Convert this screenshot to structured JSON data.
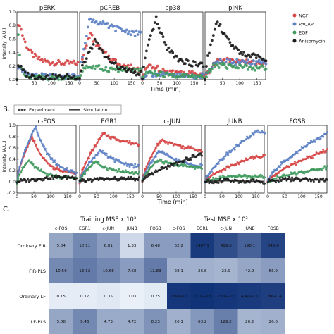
{
  "panels": {
    "a": "",
    "b": "B.",
    "c": "C."
  },
  "legend_treatments": [
    {
      "label": "NGF",
      "color": "#d64545"
    },
    {
      "label": "PACAP",
      "color": "#5b7fc4"
    },
    {
      "label": "EGF",
      "color": "#3f9a5e"
    },
    {
      "label": "Anisomycin",
      "color": "#1a1a1a"
    }
  ],
  "legend_b": {
    "experiment": "Experiment",
    "simulation": "Simulation"
  },
  "axis": {
    "ylabel": "Intensity (A.U.)",
    "xlabel": "Time (min)",
    "xticks": [
      "0",
      "50",
      "100",
      "150"
    ],
    "yticks_a": [
      "0.0",
      "0.2",
      "0.4",
      "0.6",
      "0.8",
      "1.0"
    ],
    "yticks_b": [
      "-0.2",
      "0.0",
      "0.2",
      "0.4",
      "0.6",
      "0.8",
      "1.0"
    ]
  },
  "chart_data": [
    {
      "type": "scatter",
      "panel": "A",
      "xlim": [
        0,
        175
      ],
      "ylim": [
        0,
        1.0
      ],
      "subplots": [
        {
          "title": "pERK",
          "series": [
            {
              "name": "NGF",
              "peak": 0.9,
              "t_peak": 5,
              "tau": 25,
              "plateau": 0.24
            },
            {
              "name": "PACAP",
              "peak": 0.2,
              "t_peak": 6,
              "tau": 18,
              "plateau": 0.05
            },
            {
              "name": "EGF",
              "peak": 0.7,
              "t_peak": 4,
              "tau": 6,
              "plateau": 0.03
            },
            {
              "name": "Anisomycin",
              "peak": 0.25,
              "t_peak": 5,
              "tau": 14,
              "plateau": 0.04
            }
          ]
        },
        {
          "title": "pCREB",
          "series": [
            {
              "name": "NGF",
              "peak": 0.68,
              "t_peak": 30,
              "tau": 60,
              "plateau": 0.1
            },
            {
              "name": "PACAP",
              "peak": 0.9,
              "t_peak": 30,
              "tau": 140,
              "plateau": 0.55
            },
            {
              "name": "EGF",
              "peak": 0.2,
              "t_peak": 15,
              "tau": 90,
              "plateau": 0.12
            },
            {
              "name": "Anisomycin",
              "peak": 0.58,
              "t_peak": 45,
              "tau": 50,
              "plateau": 0.05
            }
          ]
        },
        {
          "title": "pp38",
          "series": [
            {
              "name": "NGF",
              "peak": 0.22,
              "t_peak": 20,
              "tau": 50,
              "plateau": 0.08
            },
            {
              "name": "PACAP",
              "peak": 0.1,
              "t_peak": 15,
              "tau": 50,
              "plateau": 0.05
            },
            {
              "name": "EGF",
              "peak": 0.12,
              "t_peak": 15,
              "tau": 40,
              "plateau": 0.05
            },
            {
              "name": "Anisomycin",
              "peak": 0.9,
              "t_peak": 40,
              "tau": 35,
              "plateau": 0.2
            }
          ]
        },
        {
          "title": "pJNK",
          "series": [
            {
              "name": "NGF",
              "peak": 0.3,
              "t_peak": 40,
              "tau": 160,
              "plateau": 0.2
            },
            {
              "name": "PACAP",
              "peak": 0.28,
              "t_peak": 30,
              "tau": 160,
              "plateau": 0.22
            },
            {
              "name": "EGF",
              "peak": 0.22,
              "t_peak": 30,
              "tau": 120,
              "plateau": 0.15
            },
            {
              "name": "Anisomycin",
              "peak": 0.9,
              "t_peak": 35,
              "tau": 40,
              "plateau": 0.3
            }
          ]
        }
      ]
    },
    {
      "type": "line",
      "panel": "B",
      "xlim": [
        0,
        175
      ],
      "ylim": [
        -0.2,
        1.0
      ],
      "subplots": [
        {
          "title": "c-FOS",
          "series": [
            {
              "name": "NGF",
              "peak": 0.8,
              "t_peak": 45,
              "tau": 40,
              "plateau": 0.12
            },
            {
              "name": "PACAP",
              "peak": 0.98,
              "t_peak": 55,
              "tau": 45,
              "plateau": 0.1
            },
            {
              "name": "EGF",
              "peak": 0.38,
              "t_peak": 35,
              "tau": 40,
              "plateau": 0.06
            },
            {
              "name": "Anisomycin",
              "peak": 0.08,
              "t_peak": 120,
              "tau": 80,
              "plateau": 0.08
            }
          ]
        },
        {
          "title": "EGR1",
          "series": [
            {
              "name": "NGF",
              "peak": 0.85,
              "t_peak": 70,
              "tau": 110,
              "plateau": 0.55
            },
            {
              "name": "PACAP",
              "peak": 0.55,
              "t_peak": 60,
              "tau": 70,
              "plateau": 0.2
            },
            {
              "name": "EGF",
              "peak": 0.35,
              "t_peak": 45,
              "tau": 60,
              "plateau": 0.12
            },
            {
              "name": "Anisomycin",
              "peak": 0.05,
              "t_peak": 60,
              "tau": 80,
              "plateau": 0.05
            }
          ]
        },
        {
          "title": "c-JUN",
          "series": [
            {
              "name": "NGF",
              "peak": 0.75,
              "t_peak": 55,
              "tau": 120,
              "plateau": 0.45
            },
            {
              "name": "PACAP",
              "peak": 0.55,
              "t_peak": 50,
              "tau": 80,
              "plateau": 0.2
            },
            {
              "name": "EGF",
              "peak": 0.38,
              "t_peak": 45,
              "tau": 100,
              "plateau": 0.2
            },
            {
              "name": "Anisomycin",
              "peak": 0.48,
              "t_peak": 170,
              "tau": 200,
              "plateau": 0.48
            }
          ]
        },
        {
          "title": "JUNB",
          "series": [
            {
              "name": "NGF",
              "peak": 0.45,
              "t_peak": 150,
              "tau": 200,
              "plateau": 0.4
            },
            {
              "name": "PACAP",
              "peak": 0.88,
              "t_peak": 150,
              "tau": 200,
              "plateau": 0.8
            },
            {
              "name": "EGF",
              "peak": 0.1,
              "t_peak": 80,
              "tau": 150,
              "plateau": 0.08
            },
            {
              "name": "Anisomycin",
              "peak": 0.02,
              "t_peak": 60,
              "tau": 100,
              "plateau": 0.0
            }
          ]
        },
        {
          "title": "FOSB",
          "series": [
            {
              "name": "NGF",
              "peak": 0.55,
              "t_peak": 170,
              "tau": 300,
              "plateau": 0.55
            },
            {
              "name": "PACAP",
              "peak": 0.85,
              "t_peak": 170,
              "tau": 300,
              "plateau": 0.85
            },
            {
              "name": "EGF",
              "peak": 0.25,
              "t_peak": 170,
              "tau": 300,
              "plateau": 0.25
            },
            {
              "name": "Anisomycin",
              "peak": 0.05,
              "t_peak": 60,
              "tau": 100,
              "plateau": 0.02
            }
          ]
        }
      ]
    },
    {
      "type": "heatmap",
      "panel": "C",
      "columns": [
        "c-FOS",
        "EGR1",
        "c-JUN",
        "JUNB",
        "FOSB"
      ],
      "rows": [
        "Ordinary FIR",
        "FIR-PLS",
        "Ordinary LF",
        "LF-PLS"
      ],
      "tables": [
        {
          "title": "Training MSE x 10³",
          "cells": [
            [
              "5.04",
              "10.11",
              "6.81",
              "1.33",
              "6.48"
            ],
            [
              "10.56",
              "13.12",
              "10.68",
              "7.68",
              "12.83"
            ],
            [
              "0.15",
              "0.17",
              "0.35",
              "0.03",
              "0.25"
            ],
            [
              "5.06",
              "9.46",
              "4.73",
              "4.72",
              "8.23"
            ]
          ],
          "intensity": [
            [
              0.4,
              0.55,
              0.45,
              0.15,
              0.45
            ],
            [
              0.55,
              0.62,
              0.55,
              0.45,
              0.62
            ],
            [
              0.05,
              0.05,
              0.07,
              0.03,
              0.06
            ],
            [
              0.4,
              0.55,
              0.38,
              0.38,
              0.5
            ]
          ]
        },
        {
          "title": "Test MSE x 10³",
          "cells": [
            [
              "62.2",
              "1487.9",
              "419.6",
              "198.1",
              "845.8"
            ],
            [
              "28.1",
              "26.8",
              "23.9",
              "42.9",
              "56.9"
            ],
            [
              "2.0e+17",
              "2.1e+18",
              "2.6e+17",
              "4.4e+15",
              "1.8e+14"
            ],
            [
              "26.1",
              "63.2",
              "129.2",
              "20.2",
              "26.6"
            ]
          ],
          "intensity": [
            [
              0.45,
              0.95,
              0.85,
              0.75,
              0.9
            ],
            [
              0.35,
              0.35,
              0.33,
              0.4,
              0.45
            ],
            [
              0.97,
              0.99,
              0.97,
              0.95,
              0.93
            ],
            [
              0.35,
              0.48,
              0.6,
              0.33,
              0.35
            ]
          ]
        }
      ]
    }
  ]
}
